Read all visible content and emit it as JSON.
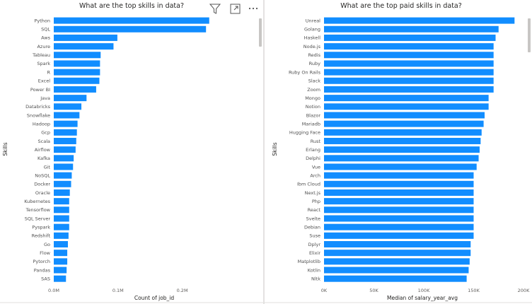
{
  "toolbar": {
    "filter_icon": "filter-icon",
    "focus_icon": "focus-mode-icon",
    "more_icon": "more-options-icon"
  },
  "colors": {
    "bar": "#118dff",
    "text": "#252423",
    "divider": "#c8c6c4",
    "scrollbar": "#c8c6c4"
  },
  "chart_data": [
    {
      "type": "bar",
      "orientation": "horizontal",
      "title": "What are the top skills in data?",
      "xlabel": "Count of job_id",
      "ylabel": "Skills",
      "xlim": [
        0,
        250000
      ],
      "xticks": [
        0,
        100000,
        200000
      ],
      "xtick_labels": [
        "0.0M",
        "0.1M",
        "0.2M"
      ],
      "categories": [
        "Python",
        "SQL",
        "Aws",
        "Azure",
        "Tableau",
        "Spark",
        "R",
        "Excel",
        "Power BI",
        "Java",
        "Databricks",
        "Snowflake",
        "Hadoop",
        "Gcp",
        "Scala",
        "Airflow",
        "Kafka",
        "Git",
        "NoSQL",
        "Docker",
        "Oracle",
        "Kubernetes",
        "Tensorflow",
        "SQL Server",
        "Pyspark",
        "Redshift",
        "Go",
        "Flow",
        "Pytorch",
        "Pandas",
        "SAS"
      ],
      "values": [
        242000,
        237000,
        99000,
        93000,
        73000,
        72000,
        72000,
        71000,
        66000,
        51000,
        43000,
        40000,
        37000,
        36000,
        35000,
        34000,
        31000,
        30000,
        28000,
        27000,
        25000,
        24000,
        24000,
        24000,
        24000,
        23000,
        22000,
        21000,
        21000,
        20000,
        19000
      ]
    },
    {
      "type": "bar",
      "orientation": "horizontal",
      "title": "What are the top paid skills in data?",
      "xlabel": "Median of salary_year_avg",
      "ylabel": "Skills",
      "xlim": [
        0,
        200000
      ],
      "xticks": [
        0,
        50000,
        100000,
        150000,
        200000
      ],
      "xtick_labels": [
        "0K",
        "50K",
        "100K",
        "150K",
        "200K"
      ],
      "categories": [
        "Unreal",
        "Golang",
        "Haskell",
        "Node.js",
        "Redis",
        "Ruby",
        "Ruby On Rails",
        "Slack",
        "Zoom",
        "Mongo",
        "Notion",
        "Blazor",
        "Mariadb",
        "Hugging Face",
        "Rust",
        "Erlang",
        "Delphi",
        "Vue",
        "Arch",
        "Ibm Cloud",
        "Next.js",
        "Php",
        "React",
        "Svelte",
        "Debian",
        "Suse",
        "Dplyr",
        "Elixir",
        "Matplotlib",
        "Kotlin",
        "Nltk"
      ],
      "values": [
        191000,
        175000,
        172000,
        170000,
        170000,
        170000,
        170000,
        170000,
        170000,
        165000,
        165000,
        161000,
        160000,
        158000,
        157000,
        156000,
        155000,
        153000,
        150000,
        150000,
        150000,
        150000,
        150000,
        150000,
        150000,
        150000,
        147000,
        147000,
        146000,
        145000,
        143000
      ]
    }
  ]
}
